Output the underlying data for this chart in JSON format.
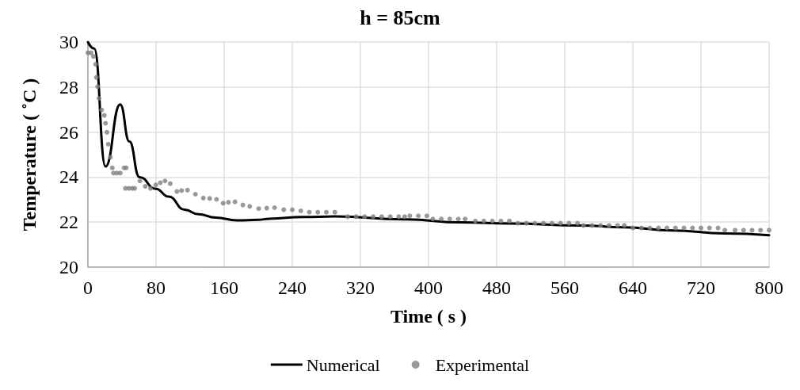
{
  "chart_data": {
    "type": "line",
    "title": "h = 85cm",
    "xlabel": "Time ( s )",
    "ylabel": "Temperature ( ˚C )",
    "xlim": [
      0,
      800
    ],
    "xticks": [
      0,
      80,
      160,
      240,
      320,
      400,
      480,
      560,
      640,
      720,
      800
    ],
    "ylim": [
      20,
      30
    ],
    "yticks": [
      20,
      22,
      24,
      26,
      28,
      30
    ],
    "grid": true,
    "legend": "bottom",
    "series": [
      {
        "name": "Numerical",
        "marker": "none",
        "color": "#000000",
        "x": [
          0,
          7.4,
          20.7,
          37.9,
          48.7,
          60.5,
          79.7,
          94.9,
          113.5,
          130,
          150,
          175,
          200,
          213,
          252,
          290,
          374,
          438,
          496,
          579,
          630,
          686,
          748,
          800
        ],
        "values": [
          30,
          29.71,
          24.47,
          27.23,
          25.58,
          24.0,
          23.48,
          23.13,
          22.55,
          22.35,
          22.2,
          22.08,
          22.1,
          22.15,
          22.23,
          22.25,
          22.12,
          21.99,
          21.94,
          21.85,
          21.77,
          21.63,
          21.5,
          21.42
        ]
      },
      {
        "name": "Experimental",
        "type": "scatter",
        "marker": "circle",
        "color": "#7f7f7f",
        "x": [
          0,
          3.7,
          6.5,
          9,
          10,
          11.4,
          13,
          16.1,
          19.3,
          20.7,
          22.3,
          23.9,
          26.3,
          28.6,
          30,
          34,
          37.9,
          42.5,
          45,
          44,
          48,
          52,
          54.9,
          61.1,
          67.3,
          73.5,
          79.7,
          85,
          90.5,
          96.7,
          104.5,
          110,
          116.9,
          126.2,
          135.5,
          143,
          151,
          158.8,
          165,
          172.7,
          182,
          190,
          200.6,
          210,
          219.2,
          230,
          240,
          250,
          260,
          270,
          280,
          290,
          305,
          315,
          325,
          335,
          345,
          355,
          365,
          372,
          378,
          388,
          398,
          405,
          415,
          425,
          435,
          443,
          455,
          465,
          475,
          485,
          495,
          505,
          515,
          525,
          535,
          545,
          555,
          565,
          575,
          582,
          592,
          602,
          612,
          622,
          630,
          640,
          650,
          660,
          670,
          680,
          690,
          700,
          710,
          720,
          730,
          740,
          748,
          760,
          770,
          780,
          790,
          800
        ],
        "values": [
          29.52,
          29.52,
          29.36,
          29.01,
          28.43,
          28.02,
          27.5,
          26.98,
          26.74,
          26.39,
          25.99,
          25.46,
          24.88,
          24.41,
          24.18,
          24.18,
          24.18,
          24.41,
          24.41,
          23.5,
          23.5,
          23.5,
          23.5,
          23.83,
          23.59,
          23.5,
          23.65,
          23.75,
          23.83,
          23.71,
          23.36,
          23.4,
          23.42,
          23.24,
          23.07,
          23.05,
          23.01,
          22.84,
          22.88,
          22.9,
          22.76,
          22.7,
          22.6,
          22.62,
          22.64,
          22.55,
          22.55,
          22.5,
          22.44,
          22.44,
          22.44,
          22.44,
          22.24,
          22.24,
          22.24,
          22.24,
          22.24,
          22.24,
          22.24,
          22.24,
          22.28,
          22.28,
          22.28,
          22.14,
          22.14,
          22.14,
          22.14,
          22.14,
          22.05,
          22.05,
          22.05,
          22.05,
          22.05,
          21.95,
          21.95,
          21.95,
          21.95,
          21.95,
          21.95,
          21.95,
          21.95,
          21.85,
          21.85,
          21.85,
          21.85,
          21.85,
          21.85,
          21.74,
          21.74,
          21.74,
          21.74,
          21.74,
          21.74,
          21.74,
          21.74,
          21.74,
          21.74,
          21.74,
          21.64,
          21.64,
          21.64,
          21.64,
          21.64,
          21.64
        ]
      }
    ]
  }
}
